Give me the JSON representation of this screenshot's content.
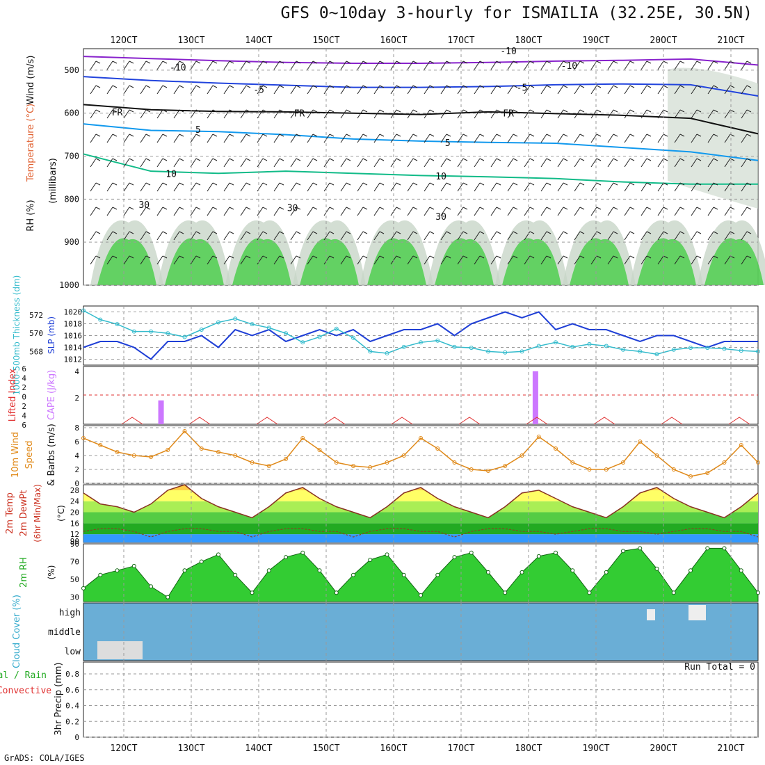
{
  "title": "GFS 0~10day 3-hourly for ISMAILIA (32.25E, 30.5N)",
  "footer": "GrADS: COLA/IGES",
  "run_total": "Run Total = 0",
  "colors": {
    "grid": "#9a9a9a",
    "rh_green": "#33cc33",
    "rh_grey": "#c8d6c8",
    "slp": "#1f3fd6",
    "thickness": "#33bbcc",
    "cape": "#cc77ff",
    "li": "#e03030",
    "wind": "#e08a1a",
    "temp_fill": [
      "#3399ff",
      "#22aa22",
      "#55cc44",
      "#aaee55",
      "#ffff66",
      "#ffcc44",
      "#ff9922"
    ],
    "cloud": "#6aaed6"
  },
  "chart_data": [
    {
      "type": "area",
      "panel": "pressure-time cross section",
      "title": "GFS 0~10day 3-hourly for ISMAILIA (32.25E, 30.5N)",
      "y_title_words": [
        "Wind (m/s)",
        "Temperature (°C)",
        "RH (%)"
      ],
      "ylabel": "(millibars)",
      "y_ticks": [
        500,
        600,
        700,
        800,
        900,
        1000
      ],
      "x_ticks_top": [
        "12OCT",
        "13OCT",
        "14OCT",
        "15OCT",
        "16OCT",
        "17OCT",
        "18OCT",
        "19OCT",
        "20OCT",
        "21OCT"
      ],
      "contour_labels": [
        {
          "text": "-10",
          "x": 1.4,
          "y": 493
        },
        {
          "text": "-10",
          "x": 7.2,
          "y": 489
        },
        {
          "text": "-5",
          "x": 2.6,
          "y": 545
        },
        {
          "text": "-5",
          "x": 6.5,
          "y": 540
        },
        {
          "text": "FR",
          "x": 0.5,
          "y": 597
        },
        {
          "text": "FR",
          "x": 3.2,
          "y": 600
        },
        {
          "text": "FR",
          "x": 6.3,
          "y": 600
        },
        {
          "text": "5",
          "x": 1.7,
          "y": 638
        },
        {
          "text": "5",
          "x": 5.4,
          "y": 668
        },
        {
          "text": "10",
          "x": 1.3,
          "y": 740
        },
        {
          "text": "10",
          "x": 5.3,
          "y": 746
        },
        {
          "text": "30",
          "x": 0.9,
          "y": 812
        },
        {
          "text": "30",
          "x": 3.1,
          "y": 820
        },
        {
          "text": "30",
          "x": 5.3,
          "y": 840
        },
        {
          "text": "-10",
          "x": 6.3,
          "y": 455
        }
      ],
      "isotherms": [
        {
          "label": "-10",
          "color": "#8822cc",
          "x": [
            0,
            1,
            2,
            3,
            4,
            5,
            6,
            7,
            8,
            9,
            10
          ],
          "y": [
            468,
            473,
            478,
            482,
            484,
            484,
            482,
            479,
            477,
            474,
            488
          ]
        },
        {
          "label": "-5",
          "color": "#2244dd",
          "x": [
            0,
            1,
            2,
            3,
            4,
            5,
            6,
            7,
            8,
            9,
            10
          ],
          "y": [
            515,
            524,
            530,
            535,
            540,
            540,
            538,
            534,
            532,
            534,
            560
          ]
        },
        {
          "label": "FR",
          "color": "#111111",
          "x": [
            0,
            1,
            2,
            3,
            4,
            5,
            6,
            7,
            8,
            9,
            10
          ],
          "y": [
            580,
            592,
            596,
            597,
            600,
            603,
            597,
            601,
            605,
            612,
            648
          ]
        },
        {
          "label": "5",
          "color": "#1199ee",
          "x": [
            0,
            1,
            2,
            3,
            4,
            5,
            6,
            7,
            8,
            9,
            10
          ],
          "y": [
            625,
            640,
            643,
            650,
            660,
            665,
            668,
            670,
            680,
            690,
            710
          ]
        },
        {
          "label": "10",
          "color": "#11bb88",
          "x": [
            0,
            1,
            2,
            3,
            4,
            5,
            6,
            7,
            8,
            9,
            10
          ],
          "y": [
            695,
            735,
            740,
            735,
            740,
            745,
            748,
            752,
            760,
            765,
            765
          ]
        }
      ]
    },
    {
      "type": "line",
      "panel": "SLP and thickness",
      "ylabel_left": "1000-500mb Thickness (dm)",
      "ylabel_right": "SLP (mb)",
      "left_ticks": [
        568,
        570,
        572
      ],
      "right_ticks": [
        1012,
        1014,
        1016,
        1018,
        1020
      ],
      "slp": [
        1014,
        1015,
        1015,
        1014,
        1012,
        1015,
        1015,
        1016,
        1014,
        1017,
        1016,
        1017,
        1015,
        1016,
        1017,
        1016,
        1017,
        1015,
        1016,
        1017,
        1017,
        1018,
        1016,
        1018,
        1019,
        1020,
        1019,
        1020,
        1017,
        1018,
        1017,
        1017,
        1016,
        1015,
        1016,
        1016,
        1015,
        1014,
        1015,
        1015,
        1015
      ],
      "thickness": [
        572.5,
        571.5,
        571,
        570.2,
        570.2,
        570,
        569.6,
        570.4,
        571.2,
        571.6,
        571,
        570.6,
        570,
        569,
        569.6,
        570.5,
        569.5,
        568,
        567.8,
        568.5,
        569,
        569.2,
        568.5,
        568.4,
        568,
        567.9,
        568,
        568.6,
        569,
        568.5,
        568.8,
        568.6,
        568.2,
        568,
        567.7,
        568.2,
        568.4,
        568.4,
        568.3,
        568.1,
        568
      ]
    },
    {
      "type": "bar",
      "panel": "CAPE and Lifted Index",
      "ylabel_left": "Lifted Index",
      "ylabel_right": "CAPE (J/kg)",
      "li_ticks": [
        "6",
        "4",
        "2",
        "0",
        "2",
        "4",
        "6"
      ],
      "cape_ticks": [
        2,
        4
      ],
      "cape_bars": [
        {
          "x": 1.15,
          "value": 1.8
        },
        {
          "x": 6.7,
          "value": 4.0
        }
      ],
      "li_zero_line": 0
    },
    {
      "type": "line",
      "panel": "10m Wind Speed & Barbs",
      "ylabel": "10m Wind Speed & Barbs (m/s)",
      "y_ticks": [
        0,
        2,
        4,
        6,
        8
      ],
      "speed": [
        6.5,
        5.5,
        4.5,
        4,
        3.8,
        4.8,
        7.5,
        5,
        4.5,
        4,
        3,
        2.5,
        3.5,
        6.5,
        4.8,
        3,
        2.5,
        2.3,
        3,
        4,
        6.5,
        5,
        3,
        2,
        1.8,
        2.5,
        4,
        6.7,
        5,
        3,
        2,
        2,
        3,
        6,
        4,
        2,
        1,
        1.5,
        3,
        5.5,
        3
      ],
      "ylim": [
        0,
        8
      ]
    },
    {
      "type": "area",
      "panel": "2m Temp and DewPt",
      "ylabel": "2m Temp 2m DewPt (6hr Min/Max) (°C)",
      "y_ticks": [
        12,
        16,
        20,
        24,
        28
      ],
      "temp": [
        27,
        23,
        22,
        20,
        23,
        28,
        30,
        25,
        22,
        20,
        18,
        22,
        27,
        29,
        25,
        22,
        20,
        18,
        22,
        27,
        29,
        25,
        22,
        20,
        18,
        22,
        27,
        28,
        25,
        22,
        20,
        18,
        22,
        27,
        29,
        25,
        22,
        20,
        18,
        22,
        27
      ],
      "dewpt": [
        13,
        14,
        14,
        13,
        11,
        13,
        14,
        14,
        13,
        13,
        11,
        13,
        14,
        14,
        13,
        13,
        11,
        13,
        14,
        14,
        13,
        13,
        11,
        13,
        14,
        14,
        13,
        13,
        12,
        13,
        14,
        14,
        13,
        13,
        12,
        13,
        14,
        14,
        13,
        13,
        11
      ]
    },
    {
      "type": "area",
      "panel": "2m RH",
      "ylabel": "2m RH (%)",
      "y_ticks": [
        30,
        50,
        70,
        90
      ],
      "rh": [
        40,
        55,
        60,
        65,
        42,
        30,
        60,
        70,
        78,
        55,
        35,
        60,
        75,
        80,
        60,
        35,
        55,
        72,
        78,
        55,
        32,
        55,
        75,
        80,
        58,
        35,
        58,
        76,
        80,
        60,
        35,
        58,
        82,
        85,
        62,
        35,
        60,
        85,
        85,
        60,
        35
      ],
      "ylim": [
        25,
        90
      ]
    },
    {
      "type": "heatmap",
      "panel": "Cloud Cover",
      "ylabel": "Cloud Cover (%)",
      "levels": [
        "high",
        "middle",
        "low"
      ]
    },
    {
      "type": "bar",
      "panel": "3hr Precip",
      "ylabel_left": "3hr Precip (mm)",
      "legend": [
        "Total / Rain",
        "Convective"
      ],
      "y_ticks": [
        0,
        0.2,
        0.4,
        0.6,
        0.8
      ],
      "values": [],
      "x_ticks_bottom": [
        "12OCT",
        "13OCT",
        "14OCT",
        "15OCT",
        "16OCT",
        "17OCT",
        "18OCT",
        "19OCT",
        "20OCT",
        "21OCT"
      ],
      "run_total": "Run Total = 0"
    }
  ]
}
